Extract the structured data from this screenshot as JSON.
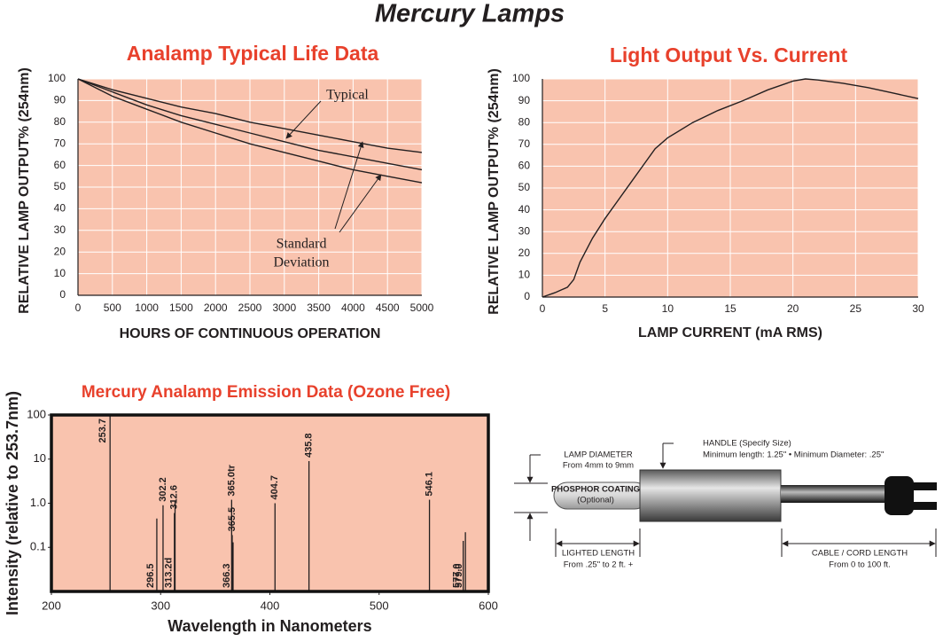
{
  "title": "Mercury Lamps",
  "chart_data": [
    {
      "type": "line",
      "title": "Analamp Typical Life Data",
      "x_label": "HOURS OF CONTINUOUS OPERATION",
      "y_label": "RELATIVE LAMP OUTPUT% (254nm)",
      "x": [
        0,
        500,
        1000,
        1500,
        2000,
        2500,
        3000,
        3500,
        4000,
        4500,
        5000
      ],
      "series": [
        {
          "color": "#231f20",
          "values": [
            100,
            95,
            91,
            87,
            84,
            80,
            77,
            74,
            71,
            68,
            66
          ]
        },
        {
          "color": "#231f20",
          "values": [
            100,
            94,
            88,
            83,
            79,
            75,
            71,
            67,
            64,
            61,
            58
          ]
        },
        {
          "color": "#231f20",
          "values": [
            100,
            92,
            86,
            80,
            75,
            70,
            66,
            62,
            58,
            55,
            52
          ]
        }
      ],
      "xlim": [
        0,
        5000
      ],
      "xticks": [
        0,
        500,
        1000,
        1500,
        2000,
        2500,
        3000,
        3500,
        4000,
        4500,
        5000
      ],
      "ylim": [
        0,
        100
      ],
      "yticks": [
        0,
        10,
        20,
        30,
        40,
        50,
        60,
        70,
        80,
        90,
        100
      ],
      "grid": true,
      "background": "#f9c3ae",
      "annotations": [
        "Typical",
        "Standard",
        "Deviation"
      ]
    },
    {
      "type": "line",
      "title": "Light Output Vs. Current",
      "x_label": "LAMP CURRENT (mA RMS)",
      "y_label": "RELATIVE LAMP OUTPUT% (254nm)",
      "x": [
        0,
        1,
        2,
        2.5,
        3,
        4,
        5,
        6,
        7,
        8,
        9,
        10,
        12,
        14,
        16,
        18,
        20,
        21,
        22,
        24,
        26,
        28,
        30
      ],
      "series": [
        {
          "color": "#231f20",
          "values": [
            0,
            2,
            4.5,
            8,
            16,
            27,
            36,
            44,
            52,
            60,
            68,
            73,
            80,
            85.5,
            90,
            95,
            99,
            100,
            99.5,
            98,
            96,
            93.5,
            91
          ]
        }
      ],
      "xlim": [
        0,
        30
      ],
      "xticks": [
        0,
        5,
        10,
        15,
        20,
        25,
        30
      ],
      "ylim": [
        0,
        100
      ],
      "yticks": [
        0,
        10,
        20,
        30,
        40,
        50,
        60,
        70,
        80,
        90,
        100
      ],
      "grid": true,
      "background": "#f9c3ae"
    },
    {
      "type": "stem",
      "title": "Mercury Analamp Emission Data (Ozone Free)",
      "x_label": "Wavelength in Nanometers",
      "y_label": "Intensity (relative to 253.7nm)",
      "x": [
        253.7,
        296.5,
        302.2,
        312.6,
        313.2,
        365.0,
        365.5,
        366.3,
        404.7,
        435.8,
        546.1,
        577.0,
        579.0
      ],
      "labels": [
        "253.7",
        "296.5",
        "302.2",
        "312.6",
        "313.2d",
        "365.0tr",
        "365.5",
        "366.3",
        "404.7",
        "435.8",
        "546.1",
        "577.0",
        "579.0"
      ],
      "values": [
        100,
        0.45,
        0.9,
        0.6,
        1.1,
        1.2,
        0.19,
        0.13,
        1.0,
        9,
        1.2,
        0.14,
        0.22
      ],
      "color": "#231f20",
      "xlim": [
        200,
        600
      ],
      "xticks": [
        200,
        300,
        400,
        500,
        600
      ],
      "ylim": [
        0.01,
        100
      ],
      "log_y": true,
      "yticks": [
        0.1,
        {
          "value": 1,
          "label": "1.0"
        },
        10,
        100
      ],
      "grid": false,
      "background": "#f9c3ae"
    }
  ],
  "diagram": {
    "lamp_diameter": "LAMP DIAMETER",
    "lamp_diameter_range": "From 4mm to 9mm",
    "handle": "HANDLE   (Specify Size)",
    "handle_spec": "Minimum length: 1.25\"  •  Minimum Diameter: .25\"",
    "coating": "PHOSPHOR COATING",
    "coating_note": "(Optional)",
    "lighted_length": "LIGHTED LENGTH",
    "lighted_length_range": "From .25\" to 2 ft. +",
    "cable_length": "CABLE / CORD LENGTH",
    "cable_length_range": "From 0 to 100 ft."
  }
}
